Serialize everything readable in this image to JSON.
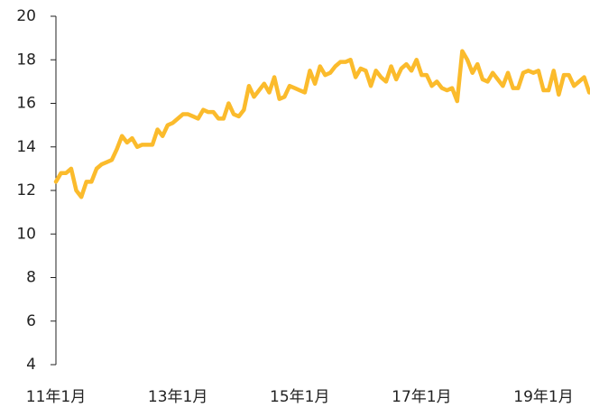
{
  "chart_data": {
    "type": "line",
    "categories": [
      "11年1月",
      null,
      null,
      null,
      null,
      null,
      null,
      null,
      null,
      null,
      null,
      null,
      null,
      null,
      null,
      null,
      null,
      null,
      null,
      null,
      null,
      null,
      null,
      null,
      "13年1月",
      null,
      null,
      null,
      null,
      null,
      null,
      null,
      null,
      null,
      null,
      null,
      null,
      null,
      null,
      null,
      null,
      null,
      null,
      null,
      null,
      null,
      null,
      null,
      "15年1月",
      null,
      null,
      null,
      null,
      null,
      null,
      null,
      null,
      null,
      null,
      null,
      null,
      null,
      null,
      null,
      null,
      null,
      null,
      null,
      null,
      null,
      null,
      null,
      "17年1月",
      null,
      null,
      null,
      null,
      null,
      null,
      null,
      null,
      null,
      null,
      null,
      null,
      null,
      null,
      null,
      null,
      null,
      null,
      null,
      null,
      null,
      null,
      null,
      "19年1月",
      null,
      null,
      null,
      null,
      null,
      null,
      null,
      null,
      null
    ],
    "series": [
      {
        "color": "#fbbb2c",
        "values": [
          12.4,
          12.8,
          12.8,
          13.0,
          12.0,
          11.7,
          12.4,
          12.4,
          13.0,
          13.2,
          13.3,
          13.4,
          13.9,
          14.5,
          14.2,
          14.4,
          14.0,
          14.1,
          14.1,
          14.1,
          14.8,
          14.5,
          15.0,
          15.1,
          15.3,
          15.5,
          15.5,
          15.4,
          15.3,
          15.7,
          15.6,
          15.6,
          15.3,
          15.3,
          16.0,
          15.5,
          15.4,
          15.7,
          16.8,
          16.3,
          16.6,
          16.9,
          16.5,
          17.2,
          16.2,
          16.3,
          16.8,
          16.7,
          16.6,
          16.5,
          17.5,
          16.9,
          17.7,
          17.3,
          17.4,
          17.7,
          17.9,
          17.9,
          18.0,
          17.2,
          17.6,
          17.5,
          16.8,
          17.5,
          17.2,
          17.0,
          17.7,
          17.1,
          17.6,
          17.8,
          17.5,
          18.0,
          17.3,
          17.3,
          16.8,
          17.0,
          16.7,
          16.6,
          16.7,
          16.1,
          18.4,
          18.0,
          17.4,
          17.8,
          17.1,
          17.0,
          17.4,
          17.1,
          16.8,
          17.4,
          16.7,
          16.7,
          17.4,
          17.5,
          17.4,
          17.5,
          16.6,
          16.6,
          17.5,
          16.4,
          17.3,
          17.3,
          16.8,
          17.0,
          17.2,
          16.5
        ]
      }
    ],
    "ylim": [
      4,
      20
    ],
    "yticks": [
      4,
      6,
      8,
      10,
      12,
      14,
      16,
      18,
      20
    ],
    "grid": false
  }
}
